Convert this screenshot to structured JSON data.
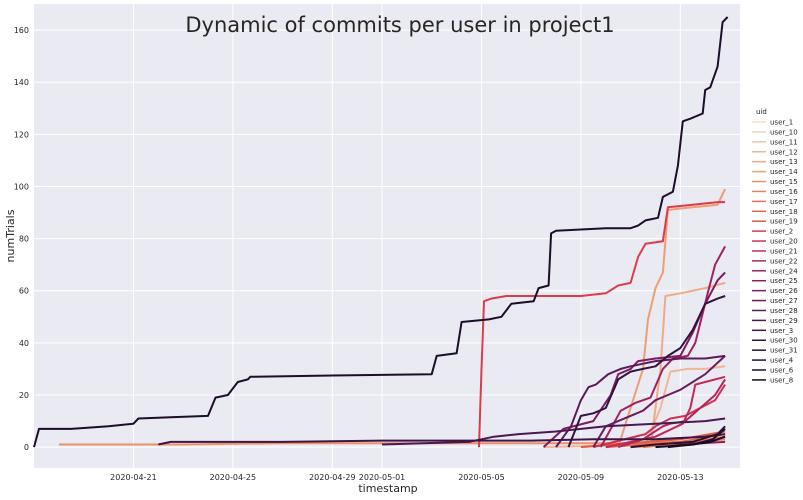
{
  "chart_data": {
    "type": "line",
    "title": "Dynamic of commits per user in project1",
    "xlabel": "timestamp",
    "ylabel": "numTrials",
    "x_range": [
      "2020-04-17",
      "2020-05-15"
    ],
    "xlim": [
      0,
      28.4
    ],
    "ylim": [
      -8,
      170
    ],
    "yticks": [
      0,
      20,
      40,
      60,
      80,
      100,
      120,
      140,
      160
    ],
    "xtick_labels": [
      "2020-04-21",
      "2020-04-25",
      "2020-04-29",
      "2020-05-01",
      "2020-05-05",
      "2020-05-09",
      "2020-05-13"
    ],
    "xtick_positions": [
      4,
      8,
      12,
      14,
      18,
      22,
      26
    ],
    "grid": true,
    "legend_title": "uid",
    "legend_position": "right",
    "series": [
      {
        "name": "user_1",
        "color": "#f4dcc8",
        "points": []
      },
      {
        "name": "user_10",
        "color": "#f3cfb6",
        "points": []
      },
      {
        "name": "user_11",
        "color": "#f2c3a5",
        "points": []
      },
      {
        "name": "user_12",
        "color": "#f1b695",
        "points": [
          [
            20.5,
            0
          ],
          [
            24.6,
            1
          ],
          [
            24.9,
            8
          ],
          [
            25.2,
            15
          ],
          [
            25.6,
            29
          ],
          [
            26.3,
            30
          ],
          [
            27,
            30
          ],
          [
            27.8,
            31
          ]
        ]
      },
      {
        "name": "user_13",
        "color": "#f0a985",
        "points": [
          [
            24.8,
            0
          ],
          [
            25.2,
            30
          ],
          [
            25.4,
            58
          ],
          [
            26,
            59
          ],
          [
            26.5,
            60
          ],
          [
            27,
            61
          ],
          [
            27.8,
            63
          ]
        ]
      },
      {
        "name": "user_14",
        "color": "#ee9d76",
        "points": [
          [
            23.5,
            0
          ],
          [
            24.5,
            30
          ],
          [
            24.7,
            49
          ],
          [
            25,
            61
          ],
          [
            25.3,
            67
          ],
          [
            25.5,
            91
          ],
          [
            26.5,
            92
          ],
          [
            27.5,
            93
          ],
          [
            27.8,
            99
          ]
        ]
      },
      {
        "name": "user_15",
        "color": "#ec9068",
        "points": [
          [
            1,
            1
          ],
          [
            6,
            1
          ],
          [
            10,
            1.5
          ],
          [
            15,
            1.5
          ],
          [
            20,
            1.5
          ],
          [
            24,
            1.5
          ],
          [
            26,
            2
          ],
          [
            27.5,
            2
          ]
        ]
      },
      {
        "name": "user_16",
        "color": "#e9835b",
        "points": [
          [
            24,
            0
          ],
          [
            26,
            1
          ],
          [
            27.8,
            3
          ]
        ]
      },
      {
        "name": "user_17",
        "color": "#e6764f",
        "points": [
          [
            24.5,
            0
          ],
          [
            26.5,
            2
          ],
          [
            27.8,
            4
          ]
        ]
      },
      {
        "name": "user_18",
        "color": "#e26845",
        "points": [
          [
            23,
            0
          ],
          [
            26,
            2
          ],
          [
            27.8,
            5
          ]
        ]
      },
      {
        "name": "user_19",
        "color": "#dd5c3d",
        "points": [
          [
            22,
            0
          ],
          [
            26,
            3
          ],
          [
            27.8,
            6
          ]
        ]
      },
      {
        "name": "user_2",
        "color": "#dc3b4a",
        "points": [
          [
            17.9,
            0
          ],
          [
            18,
            30
          ],
          [
            18.1,
            56
          ],
          [
            18.4,
            57
          ],
          [
            19,
            58
          ],
          [
            22,
            58
          ],
          [
            23,
            59
          ],
          [
            23.5,
            62
          ],
          [
            24,
            63
          ],
          [
            24.3,
            73
          ],
          [
            24.6,
            78
          ],
          [
            25.3,
            79
          ],
          [
            25.5,
            92
          ],
          [
            26.5,
            93
          ],
          [
            27.5,
            94
          ],
          [
            27.8,
            94
          ]
        ]
      },
      {
        "name": "user_20",
        "color": "#d03052",
        "points": [
          [
            22.5,
            0
          ],
          [
            24.6,
            5
          ],
          [
            25,
            8
          ],
          [
            25.6,
            11
          ],
          [
            26.2,
            12
          ],
          [
            26.8,
            15
          ],
          [
            27.4,
            18
          ],
          [
            27.8,
            24
          ]
        ]
      },
      {
        "name": "user_21",
        "color": "#c02a58",
        "points": [
          [
            23,
            0
          ],
          [
            24,
            2
          ],
          [
            25,
            4
          ],
          [
            26.1,
            9
          ],
          [
            26.4,
            15
          ],
          [
            26.6,
            24
          ],
          [
            27,
            25
          ],
          [
            27.8,
            27
          ]
        ]
      },
      {
        "name": "user_22",
        "color": "#b0265c",
        "points": [
          [
            23.5,
            0
          ],
          [
            24.5,
            3
          ],
          [
            25.3,
            8
          ],
          [
            25.6,
            9
          ],
          [
            26.2,
            10
          ],
          [
            26.8,
            15
          ],
          [
            27.4,
            20
          ],
          [
            27.8,
            26
          ]
        ]
      },
      {
        "name": "user_24",
        "color": "#a0225f",
        "points": [
          [
            22.8,
            0
          ],
          [
            23.6,
            14
          ],
          [
            24.2,
            17
          ],
          [
            24.8,
            19
          ],
          [
            25.3,
            30
          ],
          [
            25.7,
            34
          ],
          [
            26.3,
            35
          ],
          [
            26.6,
            40
          ],
          [
            27.1,
            59
          ],
          [
            27.4,
            70
          ],
          [
            27.8,
            77
          ]
        ]
      },
      {
        "name": "user_25",
        "color": "#8f1e61",
        "points": [
          [
            25.5,
            0
          ],
          [
            26,
            1
          ],
          [
            27.8,
            2
          ]
        ]
      },
      {
        "name": "user_26",
        "color": "#7e1c61",
        "points": [
          [
            20.5,
            0
          ],
          [
            21.3,
            7
          ],
          [
            22.5,
            10
          ],
          [
            23.2,
            20
          ],
          [
            23.5,
            28
          ],
          [
            24,
            30
          ],
          [
            24.3,
            33
          ],
          [
            25,
            34
          ],
          [
            26,
            35
          ],
          [
            26.5,
            44
          ],
          [
            27,
            55
          ],
          [
            27.5,
            64
          ],
          [
            27.8,
            67
          ]
        ]
      },
      {
        "name": "user_27",
        "color": "#6c1b5e",
        "points": [
          [
            22.5,
            0
          ],
          [
            23,
            8
          ],
          [
            23.5,
            10
          ],
          [
            24.5,
            14
          ],
          [
            25,
            18
          ],
          [
            25.5,
            20
          ],
          [
            26,
            22
          ],
          [
            26.5,
            25
          ],
          [
            27,
            28
          ],
          [
            27.8,
            35
          ]
        ]
      },
      {
        "name": "user_28",
        "color": "#5b1a59",
        "points": [
          [
            21,
            0
          ],
          [
            21.6,
            8
          ],
          [
            22,
            18
          ],
          [
            22.3,
            23
          ],
          [
            22.6,
            24
          ],
          [
            23.1,
            28
          ],
          [
            23.6,
            30
          ],
          [
            24,
            31
          ],
          [
            24.5,
            32
          ],
          [
            25,
            33
          ],
          [
            26,
            34
          ],
          [
            27,
            34
          ],
          [
            27.8,
            35
          ]
        ]
      },
      {
        "name": "user_29",
        "color": "#4a1852",
        "points": [
          [
            14,
            1
          ],
          [
            17.5,
            2
          ],
          [
            18,
            3
          ],
          [
            18.5,
            4
          ],
          [
            19.5,
            5
          ],
          [
            21,
            6
          ],
          [
            22,
            7
          ],
          [
            23,
            8
          ],
          [
            25,
            9
          ],
          [
            27,
            10
          ],
          [
            27.8,
            11
          ]
        ]
      },
      {
        "name": "user_3",
        "color": "#3d1547",
        "points": [
          [
            5,
            1
          ],
          [
            5.5,
            2
          ],
          [
            10,
            2
          ],
          [
            14,
            2.5
          ],
          [
            17,
            2.5
          ],
          [
            20,
            2.5
          ],
          [
            22.5,
            3
          ],
          [
            25,
            3
          ],
          [
            27,
            4
          ],
          [
            27.8,
            5
          ]
        ]
      },
      {
        "name": "user_30",
        "color": "#32133f",
        "points": [
          [
            21.5,
            0
          ],
          [
            22,
            12
          ],
          [
            22.5,
            13
          ],
          [
            23,
            15
          ],
          [
            23.5,
            26
          ],
          [
            24,
            29
          ],
          [
            24.5,
            30
          ],
          [
            25,
            31
          ],
          [
            25.5,
            35
          ],
          [
            26,
            38
          ],
          [
            26.5,
            45
          ],
          [
            27,
            55
          ],
          [
            27.5,
            57
          ],
          [
            27.8,
            58
          ]
        ]
      },
      {
        "name": "user_31",
        "color": "#2a1236",
        "points": [
          [
            24,
            0
          ],
          [
            25,
            1
          ],
          [
            26.5,
            2
          ],
          [
            27.5,
            5
          ],
          [
            27.8,
            8
          ]
        ]
      },
      {
        "name": "user_4",
        "color": "#221030",
        "points": [
          [
            25.5,
            0
          ],
          [
            26.5,
            1
          ],
          [
            27.3,
            3
          ],
          [
            27.8,
            7
          ]
        ]
      },
      {
        "name": "user_6",
        "color": "#1b0e29",
        "points": [
          [
            0,
            0
          ],
          [
            0.2,
            7
          ],
          [
            1.5,
            7
          ],
          [
            3,
            8
          ],
          [
            4,
            9
          ],
          [
            4.2,
            11
          ],
          [
            5.5,
            11.5
          ],
          [
            7,
            12
          ],
          [
            7.3,
            19
          ],
          [
            7.8,
            20
          ],
          [
            8.2,
            25
          ],
          [
            8.6,
            26
          ],
          [
            8.7,
            27
          ],
          [
            12,
            27.5
          ],
          [
            16,
            28
          ],
          [
            16.2,
            35
          ],
          [
            17,
            36
          ],
          [
            17.2,
            48
          ],
          [
            18.3,
            49
          ],
          [
            18.8,
            50
          ],
          [
            19.2,
            55
          ],
          [
            20.1,
            56
          ],
          [
            20.3,
            61
          ],
          [
            20.7,
            62
          ],
          [
            20.8,
            82
          ],
          [
            21,
            83
          ],
          [
            23,
            84
          ],
          [
            24,
            84
          ],
          [
            24.3,
            85
          ],
          [
            24.6,
            87
          ],
          [
            25.1,
            88
          ],
          [
            25.3,
            96
          ],
          [
            25.7,
            98
          ],
          [
            25.9,
            108
          ],
          [
            26.1,
            125
          ],
          [
            26.4,
            126
          ],
          [
            26.9,
            128
          ],
          [
            27,
            137
          ],
          [
            27.2,
            138
          ],
          [
            27.5,
            146
          ],
          [
            27.7,
            163
          ],
          [
            27.9,
            165
          ]
        ]
      },
      {
        "name": "user_8",
        "color": "#140c20",
        "points": [
          [
            25,
            0
          ],
          [
            26.5,
            1
          ],
          [
            27.2,
            2
          ],
          [
            27.8,
            4
          ]
        ]
      }
    ]
  }
}
